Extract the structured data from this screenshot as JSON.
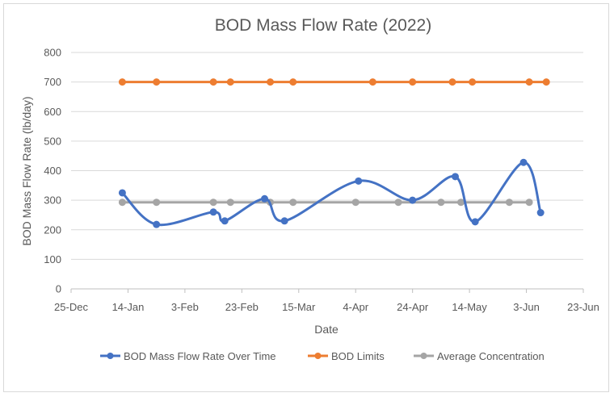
{
  "chart_data": {
    "type": "line",
    "title": "BOD Mass Flow Rate (2022)",
    "xlabel": "Date",
    "ylabel": "BOD Mass Flow Rate (lb/day)",
    "x_axis_type": "date",
    "xlim": [
      "2021-12-25",
      "2022-06-23"
    ],
    "ylim": [
      0,
      800
    ],
    "y_ticks": [
      0,
      100,
      200,
      300,
      400,
      500,
      600,
      700,
      800
    ],
    "x_ticks": [
      "2021-12-25",
      "2022-01-14",
      "2022-02-03",
      "2022-02-23",
      "2022-03-15",
      "2022-04-04",
      "2022-04-24",
      "2022-05-14",
      "2022-06-03",
      "2022-06-23"
    ],
    "x_tick_labels": [
      "25-Dec",
      "14-Jan",
      "3-Feb",
      "23-Feb",
      "15-Mar",
      "4-Apr",
      "24-Apr",
      "14-May",
      "3-Jun",
      "23-Jun"
    ],
    "grid": "horizontal",
    "legend_position": "bottom",
    "series": [
      {
        "name": "BOD Mass Flow Rate Over Time",
        "color": "#4472c4",
        "smooth": true,
        "x": [
          "2022-01-12",
          "2022-01-24",
          "2022-02-13",
          "2022-02-17",
          "2022-03-03",
          "2022-03-10",
          "2022-04-05",
          "2022-04-24",
          "2022-05-09",
          "2022-05-16",
          "2022-06-02",
          "2022-06-08"
        ],
        "y": [
          325,
          218,
          260,
          230,
          305,
          230,
          365,
          300,
          380,
          227,
          428,
          258
        ]
      },
      {
        "name": "BOD Limits",
        "color": "#ed7d31",
        "smooth": false,
        "x": [
          "2022-01-12",
          "2022-01-24",
          "2022-02-13",
          "2022-02-19",
          "2022-03-05",
          "2022-03-13",
          "2022-04-10",
          "2022-04-24",
          "2022-05-08",
          "2022-05-15",
          "2022-06-04",
          "2022-06-10"
        ],
        "y": [
          700,
          700,
          700,
          700,
          700,
          700,
          700,
          700,
          700,
          700,
          700,
          700
        ]
      },
      {
        "name": "Average Concentration",
        "color": "#a5a5a5",
        "smooth": false,
        "x": [
          "2022-01-12",
          "2022-01-24",
          "2022-02-13",
          "2022-02-19",
          "2022-03-05",
          "2022-03-13",
          "2022-04-04",
          "2022-04-19",
          "2022-05-04",
          "2022-05-11",
          "2022-05-28",
          "2022-06-04"
        ],
        "y": [
          293,
          293,
          293,
          293,
          293,
          293,
          293,
          293,
          293,
          293,
          293,
          293
        ]
      }
    ]
  }
}
